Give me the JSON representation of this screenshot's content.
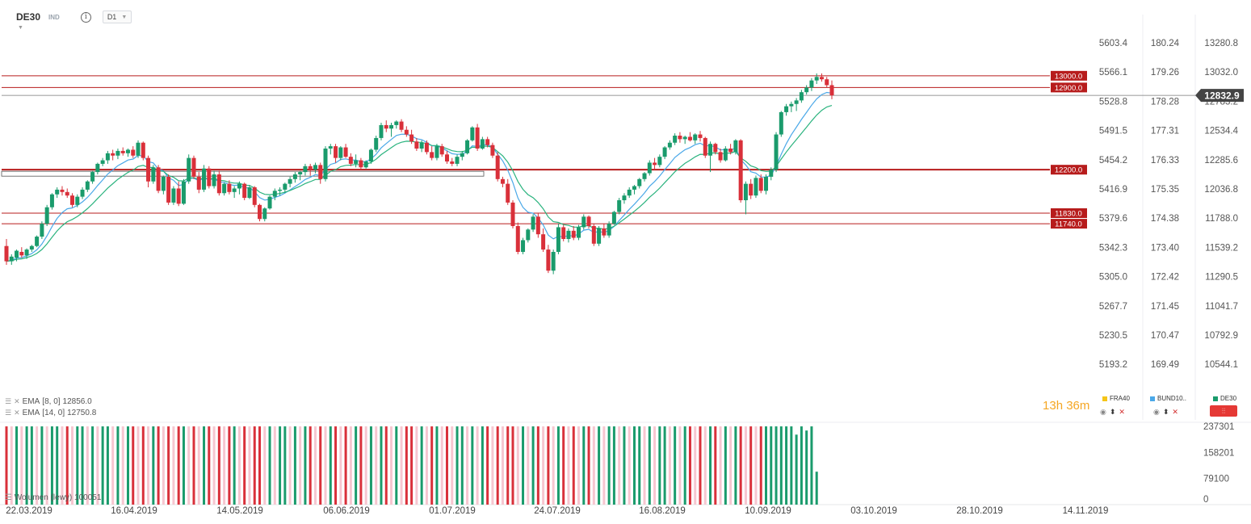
{
  "header": {
    "symbol": "DE30",
    "symbol_type": "IND",
    "timeframe": "D1"
  },
  "indicators": [
    {
      "name": "EMA",
      "params": "[8, 0]",
      "value": "12856.0",
      "color": "#4aa8e8"
    },
    {
      "name": "EMA",
      "params": "[14, 0]",
      "value": "12750.8",
      "color": "#2ab37e"
    }
  ],
  "volume_label": "Wolumen (lewy) 100051",
  "timer": {
    "hours": "13",
    "h": "h",
    "minutes": "36",
    "m": "m"
  },
  "legend": [
    {
      "name": "FRA40",
      "color": "#f5c518"
    },
    {
      "name": "BUND10..",
      "color": "#4aa8e8"
    },
    {
      "name": "DE30",
      "color": "#1a9b6c"
    }
  ],
  "colors": {
    "up": "#1a9b6c",
    "down": "#d9303a",
    "level_line": "#b71c1c",
    "price_tag": "#444444",
    "vol_up": "#1a9b6c",
    "vol_down": "#d9303a",
    "vol_faded": "#f6c6d0"
  },
  "chart_data": {
    "type": "candlestick",
    "title": "DE30",
    "y_axes": {
      "fra40": [
        "5603.4",
        "5566.1",
        "5528.8",
        "5491.5",
        "5454.2",
        "5416.9",
        "5379.6",
        "5342.3",
        "5305.0",
        "5267.7",
        "5230.5",
        "5193.2"
      ],
      "bund10": [
        "180.24",
        "179.26",
        "178.28",
        "177.31",
        "176.33",
        "175.35",
        "174.38",
        "173.40",
        "172.42",
        "171.45",
        "170.47",
        "169.49"
      ],
      "de30": [
        "13280.8",
        "13032.0",
        "12783.2",
        "12534.4",
        "12285.6",
        "12036.8",
        "11788.0",
        "11539.2",
        "11290.5",
        "11041.7",
        "10792.9",
        "10544.1"
      ]
    },
    "de30_ylim": [
      10544.1,
      13280.8
    ],
    "x_tick_labels": [
      "22.03.2019",
      "16.04.2019",
      "14.05.2019",
      "06.06.2019",
      "01.07.2019",
      "24.07.2019",
      "16.08.2019",
      "10.09.2019",
      "03.10.2019",
      "28.10.2019",
      "14.11.2019"
    ],
    "horizontal_levels": [
      "13000.0",
      "12900.0",
      "12200.0",
      "11830.0",
      "11740.0"
    ],
    "current_price": "12832.9",
    "volume_axis": [
      "237301",
      "158201",
      "79100",
      "0"
    ],
    "volume_ylim": [
      0,
      250000
    ],
    "candles": [
      [
        11550,
        11610,
        11390,
        11420
      ],
      [
        11420,
        11480,
        11390,
        11460
      ],
      [
        11450,
        11520,
        11420,
        11510
      ],
      [
        11500,
        11540,
        11450,
        11470
      ],
      [
        11470,
        11530,
        11440,
        11520
      ],
      [
        11520,
        11560,
        11500,
        11550
      ],
      [
        11550,
        11640,
        11540,
        11630
      ],
      [
        11630,
        11760,
        11610,
        11740
      ],
      [
        11740,
        11900,
        11720,
        11880
      ],
      [
        11880,
        12000,
        11860,
        11990
      ],
      [
        11990,
        12050,
        11960,
        12030
      ],
      [
        12030,
        12060,
        11980,
        12010
      ],
      [
        12010,
        12040,
        11960,
        11980
      ],
      [
        11980,
        12000,
        11880,
        11900
      ],
      [
        11900,
        11990,
        11880,
        11970
      ],
      [
        11970,
        12050,
        11950,
        12030
      ],
      [
        12030,
        12110,
        12010,
        12100
      ],
      [
        12100,
        12190,
        12080,
        12180
      ],
      [
        12180,
        12260,
        12160,
        12250
      ],
      [
        12250,
        12300,
        12230,
        12280
      ],
      [
        12280,
        12360,
        12250,
        12340
      ],
      [
        12340,
        12370,
        12280,
        12320
      ],
      [
        12320,
        12380,
        12290,
        12360
      ],
      [
        12360,
        12390,
        12320,
        12340
      ],
      [
        12340,
        12380,
        12310,
        12370
      ],
      [
        12370,
        12400,
        12300,
        12320
      ],
      [
        12320,
        12450,
        12300,
        12430
      ],
      [
        12430,
        12440,
        12280,
        12300
      ],
      [
        12300,
        12320,
        12050,
        12100
      ],
      [
        12100,
        12240,
        12080,
        12220
      ],
      [
        12220,
        12240,
        12000,
        12020
      ],
      [
        12020,
        12150,
        11990,
        12140
      ],
      [
        12140,
        12160,
        11900,
        11920
      ],
      [
        11920,
        12060,
        11900,
        12040
      ],
      [
        12040,
        12100,
        11890,
        11910
      ],
      [
        11910,
        12120,
        11900,
        12100
      ],
      [
        12100,
        12330,
        12080,
        12300
      ],
      [
        12300,
        12320,
        12120,
        12140
      ],
      [
        12140,
        12180,
        12000,
        12030
      ],
      [
        12030,
        12240,
        12010,
        12210
      ],
      [
        12210,
        12230,
        12040,
        12060
      ],
      [
        12060,
        12190,
        12040,
        12160
      ],
      [
        12160,
        12190,
        11980,
        12000
      ],
      [
        12000,
        12090,
        11980,
        12080
      ],
      [
        12080,
        12110,
        11990,
        12010
      ],
      [
        12010,
        12060,
        11960,
        12040
      ],
      [
        12040,
        12100,
        11990,
        12080
      ],
      [
        12080,
        12090,
        11940,
        11960
      ],
      [
        11960,
        12070,
        11950,
        12050
      ],
      [
        12050,
        12060,
        11880,
        11900
      ],
      [
        11900,
        11910,
        11760,
        11780
      ],
      [
        11780,
        11880,
        11760,
        11870
      ],
      [
        11870,
        11980,
        11860,
        11970
      ],
      [
        11970,
        12040,
        11940,
        12020
      ],
      [
        12020,
        12050,
        11980,
        12030
      ],
      [
        12030,
        12090,
        12000,
        12080
      ],
      [
        12080,
        12140,
        12050,
        12120
      ],
      [
        12120,
        12180,
        12090,
        12160
      ],
      [
        12160,
        12190,
        12110,
        12180
      ],
      [
        12180,
        12250,
        12150,
        12230
      ],
      [
        12230,
        12250,
        12150,
        12200
      ],
      [
        12200,
        12260,
        12170,
        12240
      ],
      [
        12240,
        12260,
        12080,
        12120
      ],
      [
        12120,
        12400,
        12100,
        12380
      ],
      [
        12380,
        12420,
        12330,
        12400
      ],
      [
        12400,
        12420,
        12260,
        12300
      ],
      [
        12300,
        12400,
        12280,
        12390
      ],
      [
        12390,
        12420,
        12300,
        12310
      ],
      [
        12310,
        12340,
        12230,
        12250
      ],
      [
        12250,
        12330,
        12220,
        12280
      ],
      [
        12280,
        12300,
        12200,
        12220
      ],
      [
        12220,
        12280,
        12210,
        12270
      ],
      [
        12270,
        12380,
        12250,
        12370
      ],
      [
        12370,
        12490,
        12350,
        12470
      ],
      [
        12470,
        12600,
        12450,
        12580
      ],
      [
        12580,
        12620,
        12520,
        12550
      ],
      [
        12550,
        12600,
        12480,
        12580
      ],
      [
        12580,
        12620,
        12550,
        12610
      ],
      [
        12610,
        12630,
        12520,
        12540
      ],
      [
        12540,
        12570,
        12480,
        12500
      ],
      [
        12500,
        12540,
        12420,
        12440
      ],
      [
        12440,
        12470,
        12360,
        12380
      ],
      [
        12380,
        12450,
        12350,
        12430
      ],
      [
        12430,
        12450,
        12330,
        12350
      ],
      [
        12350,
        12400,
        12280,
        12300
      ],
      [
        12300,
        12420,
        12280,
        12400
      ],
      [
        12400,
        12420,
        12310,
        12330
      ],
      [
        12330,
        12360,
        12250,
        12270
      ],
      [
        12270,
        12300,
        12230,
        12250
      ],
      [
        12250,
        12330,
        12230,
        12310
      ],
      [
        12310,
        12360,
        12280,
        12340
      ],
      [
        12340,
        12460,
        12330,
        12450
      ],
      [
        12450,
        12570,
        12440,
        12560
      ],
      [
        12560,
        12590,
        12360,
        12380
      ],
      [
        12380,
        12480,
        12370,
        12460
      ],
      [
        12460,
        12480,
        12390,
        12410
      ],
      [
        12410,
        12430,
        12300,
        12320
      ],
      [
        12320,
        12350,
        12100,
        12120
      ],
      [
        12120,
        12140,
        12050,
        12080
      ],
      [
        12080,
        12120,
        11900,
        11920
      ],
      [
        11920,
        11940,
        11700,
        11720
      ],
      [
        11720,
        11750,
        11480,
        11500
      ],
      [
        11500,
        11620,
        11480,
        11600
      ],
      [
        11600,
        11700,
        11580,
        11690
      ],
      [
        11690,
        11820,
        11670,
        11800
      ],
      [
        11800,
        11830,
        11620,
        11650
      ],
      [
        11650,
        11700,
        11500,
        11520
      ],
      [
        11520,
        11560,
        11320,
        11340
      ],
      [
        11340,
        11520,
        11310,
        11500
      ],
      [
        11500,
        11740,
        11480,
        11710
      ],
      [
        11710,
        11730,
        11590,
        11610
      ],
      [
        11610,
        11700,
        11580,
        11680
      ],
      [
        11680,
        11720,
        11600,
        11620
      ],
      [
        11620,
        11730,
        11600,
        11710
      ],
      [
        11710,
        11820,
        11690,
        11800
      ],
      [
        11800,
        11810,
        11700,
        11720
      ],
      [
        11720,
        11740,
        11550,
        11570
      ],
      [
        11570,
        11720,
        11550,
        11700
      ],
      [
        11700,
        11740,
        11620,
        11640
      ],
      [
        11640,
        11760,
        11620,
        11740
      ],
      [
        11740,
        11850,
        11730,
        11840
      ],
      [
        11840,
        11960,
        11820,
        11940
      ],
      [
        11940,
        12000,
        11910,
        11980
      ],
      [
        11980,
        12050,
        11960,
        12030
      ],
      [
        12030,
        12070,
        11990,
        12060
      ],
      [
        12060,
        12130,
        12040,
        12120
      ],
      [
        12120,
        12180,
        12100,
        12170
      ],
      [
        12170,
        12280,
        12150,
        12260
      ],
      [
        12260,
        12300,
        12200,
        12240
      ],
      [
        12240,
        12330,
        12220,
        12310
      ],
      [
        12310,
        12400,
        12290,
        12390
      ],
      [
        12390,
        12450,
        12370,
        12430
      ],
      [
        12430,
        12510,
        12410,
        12490
      ],
      [
        12490,
        12520,
        12430,
        12460
      ],
      [
        12460,
        12490,
        12420,
        12480
      ],
      [
        12480,
        12520,
        12440,
        12450
      ],
      [
        12450,
        12510,
        12420,
        12500
      ],
      [
        12500,
        12530,
        12440,
        12470
      ],
      [
        12470,
        12480,
        12300,
        12320
      ],
      [
        12320,
        12440,
        12180,
        12420
      ],
      [
        12420,
        12430,
        12330,
        12350
      ],
      [
        12350,
        12380,
        12260,
        12280
      ],
      [
        12280,
        12400,
        12270,
        12380
      ],
      [
        12380,
        12420,
        12330,
        12350
      ],
      [
        12350,
        12460,
        12330,
        12450
      ],
      [
        12450,
        12460,
        11920,
        11940
      ],
      [
        11940,
        12100,
        11820,
        12080
      ],
      [
        12080,
        12120,
        11950,
        11980
      ],
      [
        11980,
        12150,
        11960,
        12130
      ],
      [
        12130,
        12160,
        12000,
        12020
      ],
      [
        12020,
        12160,
        11990,
        12140
      ],
      [
        12140,
        12220,
        12110,
        12200
      ],
      [
        12200,
        12520,
        12180,
        12500
      ],
      [
        12500,
        12700,
        12480,
        12690
      ],
      [
        12690,
        12760,
        12660,
        12740
      ],
      [
        12740,
        12780,
        12690,
        12760
      ],
      [
        12760,
        12810,
        12700,
        12790
      ],
      [
        12790,
        12880,
        12770,
        12860
      ],
      [
        12860,
        12920,
        12840,
        12900
      ],
      [
        12900,
        12980,
        12870,
        12960
      ],
      [
        12960,
        13020,
        12930,
        12990
      ],
      [
        12990,
        13020,
        12950,
        12970
      ],
      [
        12970,
        12990,
        12900,
        12920
      ],
      [
        12920,
        12960,
        12800,
        12832.9
      ]
    ],
    "volume_ratio": [
      0.95,
      0.95,
      0.95,
      0.95,
      0.95,
      0.95,
      0.95,
      0.95,
      0.95,
      0.95,
      0.95,
      0.95,
      0.95,
      0.95,
      0.95,
      0.95,
      0.95,
      0.95,
      0.95,
      0.95,
      0.95,
      0.95,
      0.95,
      0.95,
      0.95,
      0.95,
      0.95,
      0.95,
      0.95,
      0.95,
      0.95,
      0.95,
      0.95,
      0.95,
      0.95,
      0.95,
      0.95,
      0.95,
      0.95,
      0.95,
      0.95,
      0.95,
      0.95,
      0.95,
      0.95,
      0.95,
      0.95,
      0.95,
      0.95,
      0.95,
      0.95,
      0.95,
      0.95,
      0.95,
      0.95,
      0.95,
      0.95,
      0.95,
      0.95,
      0.95,
      0.95,
      0.95,
      0.95,
      0.95,
      0.95,
      0.95,
      0.95,
      0.95,
      0.95,
      0.95,
      0.95,
      0.95,
      0.95,
      0.95,
      0.95,
      0.95,
      0.95,
      0.95,
      0.95,
      0.95,
      0.95,
      0.95,
      0.95,
      0.95,
      0.95,
      0.95,
      0.95,
      0.95,
      0.95,
      0.95,
      0.95,
      0.95,
      0.95,
      0.95,
      0.95,
      0.95,
      0.95,
      0.95,
      0.95,
      0.95,
      0.95,
      0.95,
      0.95,
      0.95,
      0.95,
      0.95,
      0.95,
      0.95,
      0.95,
      0.95,
      0.95,
      0.95,
      0.95,
      0.95,
      0.95,
      0.95,
      0.95,
      0.95,
      0.95,
      0.95,
      0.95,
      0.95,
      0.95,
      0.95,
      0.95,
      0.95,
      0.95,
      0.95,
      0.95,
      0.95,
      0.95,
      0.95,
      0.95,
      0.95,
      0.95,
      0.95,
      0.95,
      0.95,
      0.95,
      0.95,
      0.95,
      0.95,
      0.95,
      0.95,
      0.95,
      0.95,
      0.95,
      0.95,
      0.95,
      0.95,
      0.95,
      0.95,
      0.95,
      0.95,
      0.95,
      0.95,
      0.85,
      0.95,
      0.9,
      0.95,
      0.4
    ]
  }
}
